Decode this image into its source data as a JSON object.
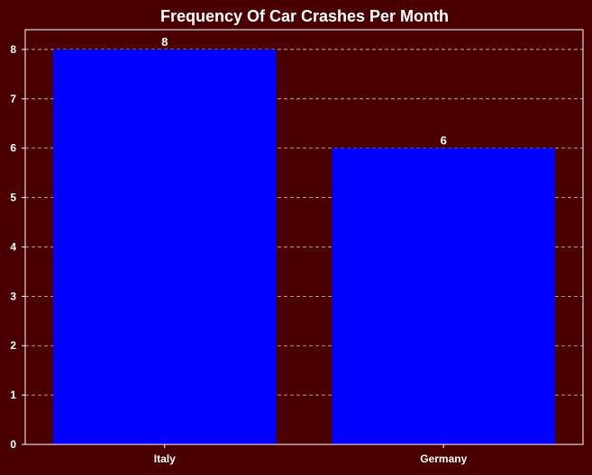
{
  "chart_data": {
    "type": "bar",
    "title": "Frequency Of Car Crashes Per Month",
    "xlabel": "",
    "ylabel": "",
    "categories": [
      "Italy",
      "Germany"
    ],
    "values": [
      8,
      6
    ],
    "data_labels": [
      "8",
      "6"
    ],
    "ylim": [
      0,
      8.4
    ],
    "yticks": [
      0,
      1,
      2,
      3,
      4,
      5,
      6,
      7,
      8
    ],
    "grid": true,
    "colors": {
      "background": "#4a0000",
      "bar": "#0000ff",
      "text": "#ffffff"
    }
  }
}
